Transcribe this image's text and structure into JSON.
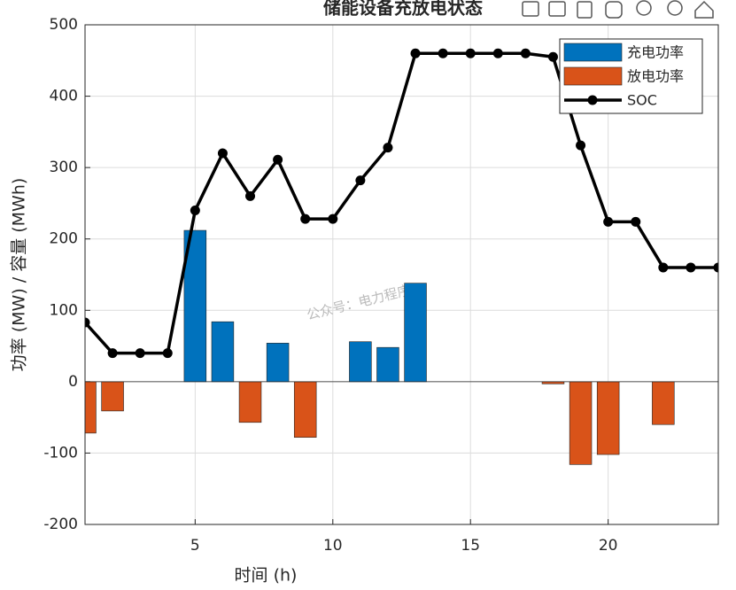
{
  "chart_data": {
    "type": "bar",
    "title": "储能设备充放电状态",
    "xlabel": "时间 (h)",
    "ylabel": "功率 (MW) / 容量 (MWh)",
    "annotation": "公众号：电力程序",
    "x": [
      1,
      2,
      3,
      4,
      5,
      6,
      7,
      8,
      9,
      10,
      11,
      12,
      13,
      14,
      15,
      16,
      17,
      18,
      19,
      20,
      21,
      22,
      23,
      24
    ],
    "series": [
      {
        "name": "充电功率",
        "type": "bar",
        "color": "#0072BD",
        "values": [
          0,
          0,
          0,
          0,
          212,
          84,
          0,
          54,
          0,
          0,
          56,
          48,
          138,
          0,
          0,
          0,
          0,
          0,
          0,
          0,
          0,
          0,
          0,
          0
        ]
      },
      {
        "name": "放电功率",
        "type": "bar",
        "color": "#D95319",
        "values": [
          -72,
          -41,
          0,
          0,
          0,
          0,
          -57,
          0,
          -78,
          0,
          0,
          0,
          0,
          0,
          0,
          0,
          0,
          -3,
          -116,
          -102,
          0,
          -60,
          0,
          0
        ]
      },
      {
        "name": "SOC",
        "type": "line",
        "color": "#000000",
        "values": [
          83,
          40,
          40,
          40,
          240,
          320,
          260,
          311,
          228,
          228,
          282,
          328,
          460,
          460,
          460,
          460,
          460,
          455,
          331,
          224,
          224,
          160,
          160,
          160
        ]
      }
    ],
    "xlim": [
      1,
      24
    ],
    "ylim": [
      -200,
      500
    ],
    "xticks": [
      5,
      10,
      15,
      20
    ],
    "yticks": [
      -200,
      -100,
      0,
      100,
      200,
      300,
      400,
      500
    ],
    "grid": true,
    "legend": "top-right",
    "bar_width": 0.8
  }
}
